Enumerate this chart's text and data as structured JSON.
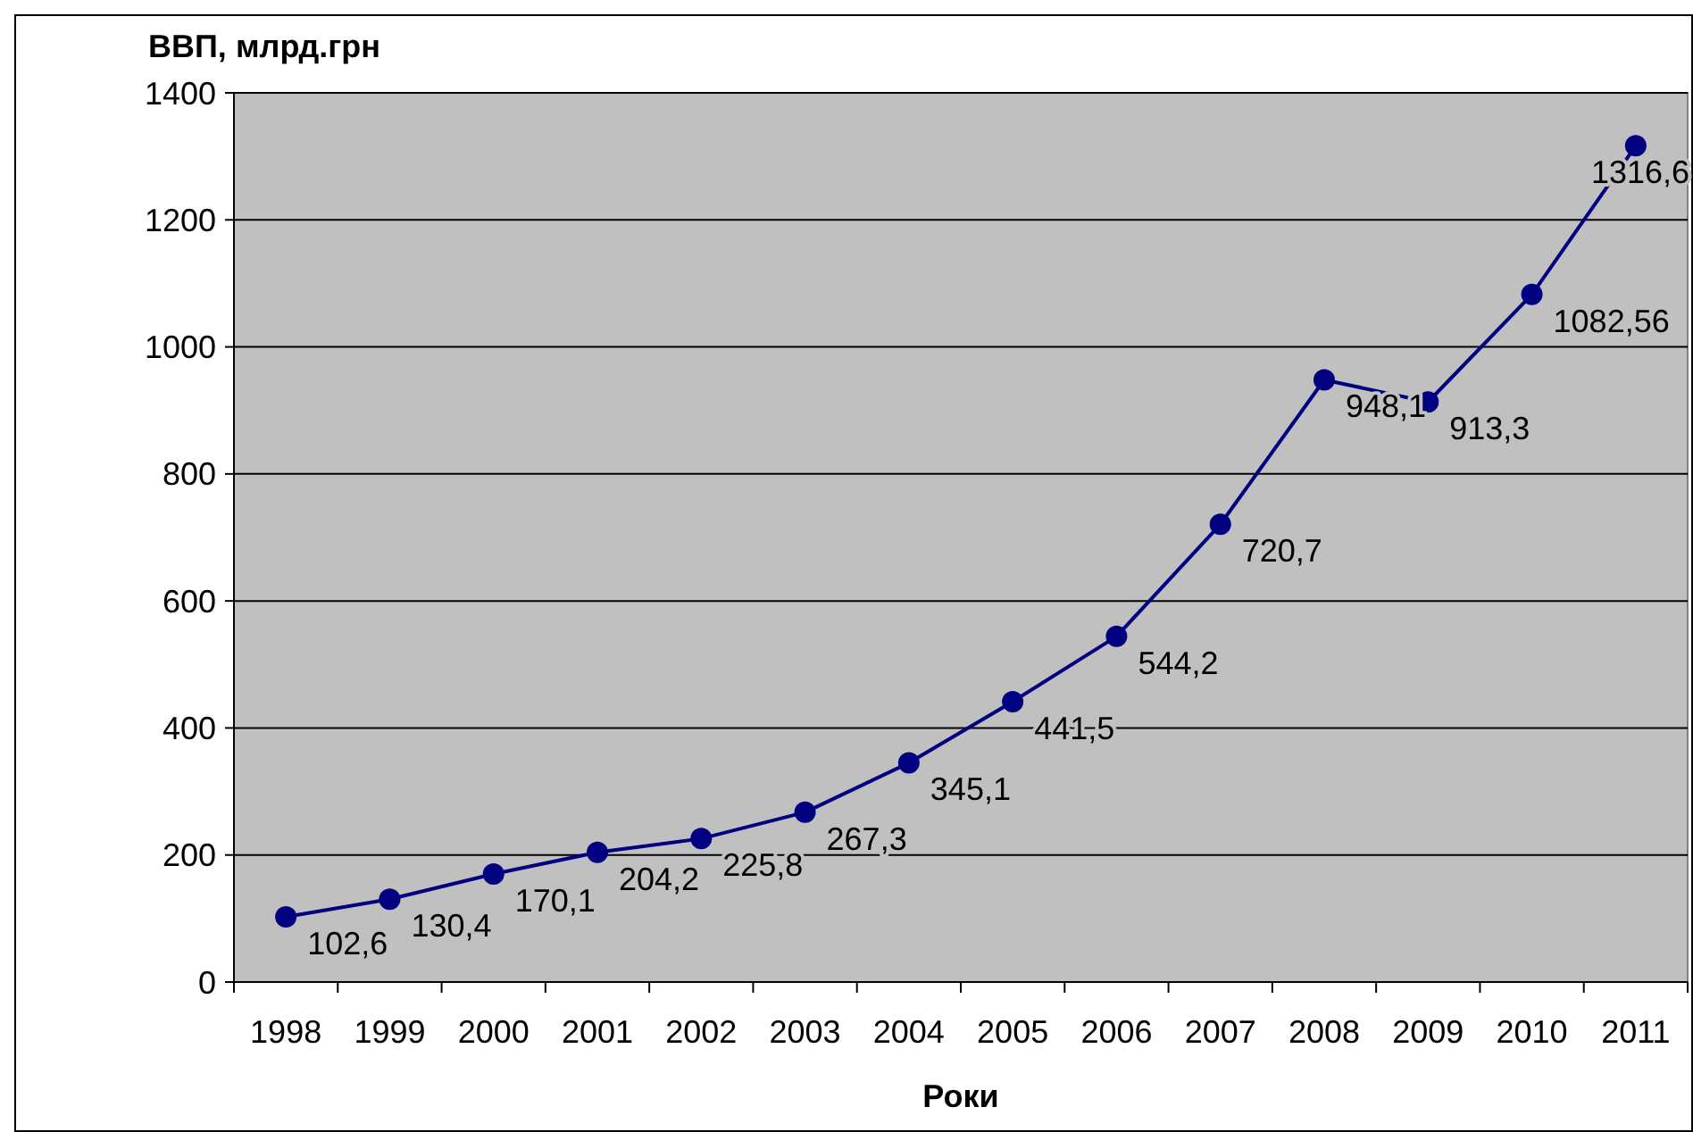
{
  "chart_data": {
    "type": "line",
    "ylabel": "ВВП, млрд.грн",
    "xlabel": "Роки",
    "categories": [
      "1998",
      "1999",
      "2000",
      "2001",
      "2002",
      "2003",
      "2004",
      "2005",
      "2006",
      "2007",
      "2008",
      "2009",
      "2010",
      "2011"
    ],
    "series": [
      {
        "color": "#000080",
        "values": [
          102.6,
          130.4,
          170.1,
          204.2,
          225.8,
          267.3,
          345.1,
          441.5,
          544.2,
          720.7,
          948.1,
          913.3,
          1082.56,
          1316.6
        ],
        "value_labels": [
          "102,6",
          "130,4",
          "170,1",
          "204,2",
          "225,8",
          "267,3",
          "345,1",
          "441,5",
          "544,2",
          "720,7",
          "948,1",
          "913,3",
          "1082,56",
          "1316,6"
        ]
      }
    ],
    "ylim": [
      0,
      1400
    ],
    "yticks": [
      0,
      200,
      400,
      600,
      800,
      1000,
      1200,
      1400
    ],
    "grid": "y",
    "marker": "circle",
    "line_style": "solid"
  }
}
